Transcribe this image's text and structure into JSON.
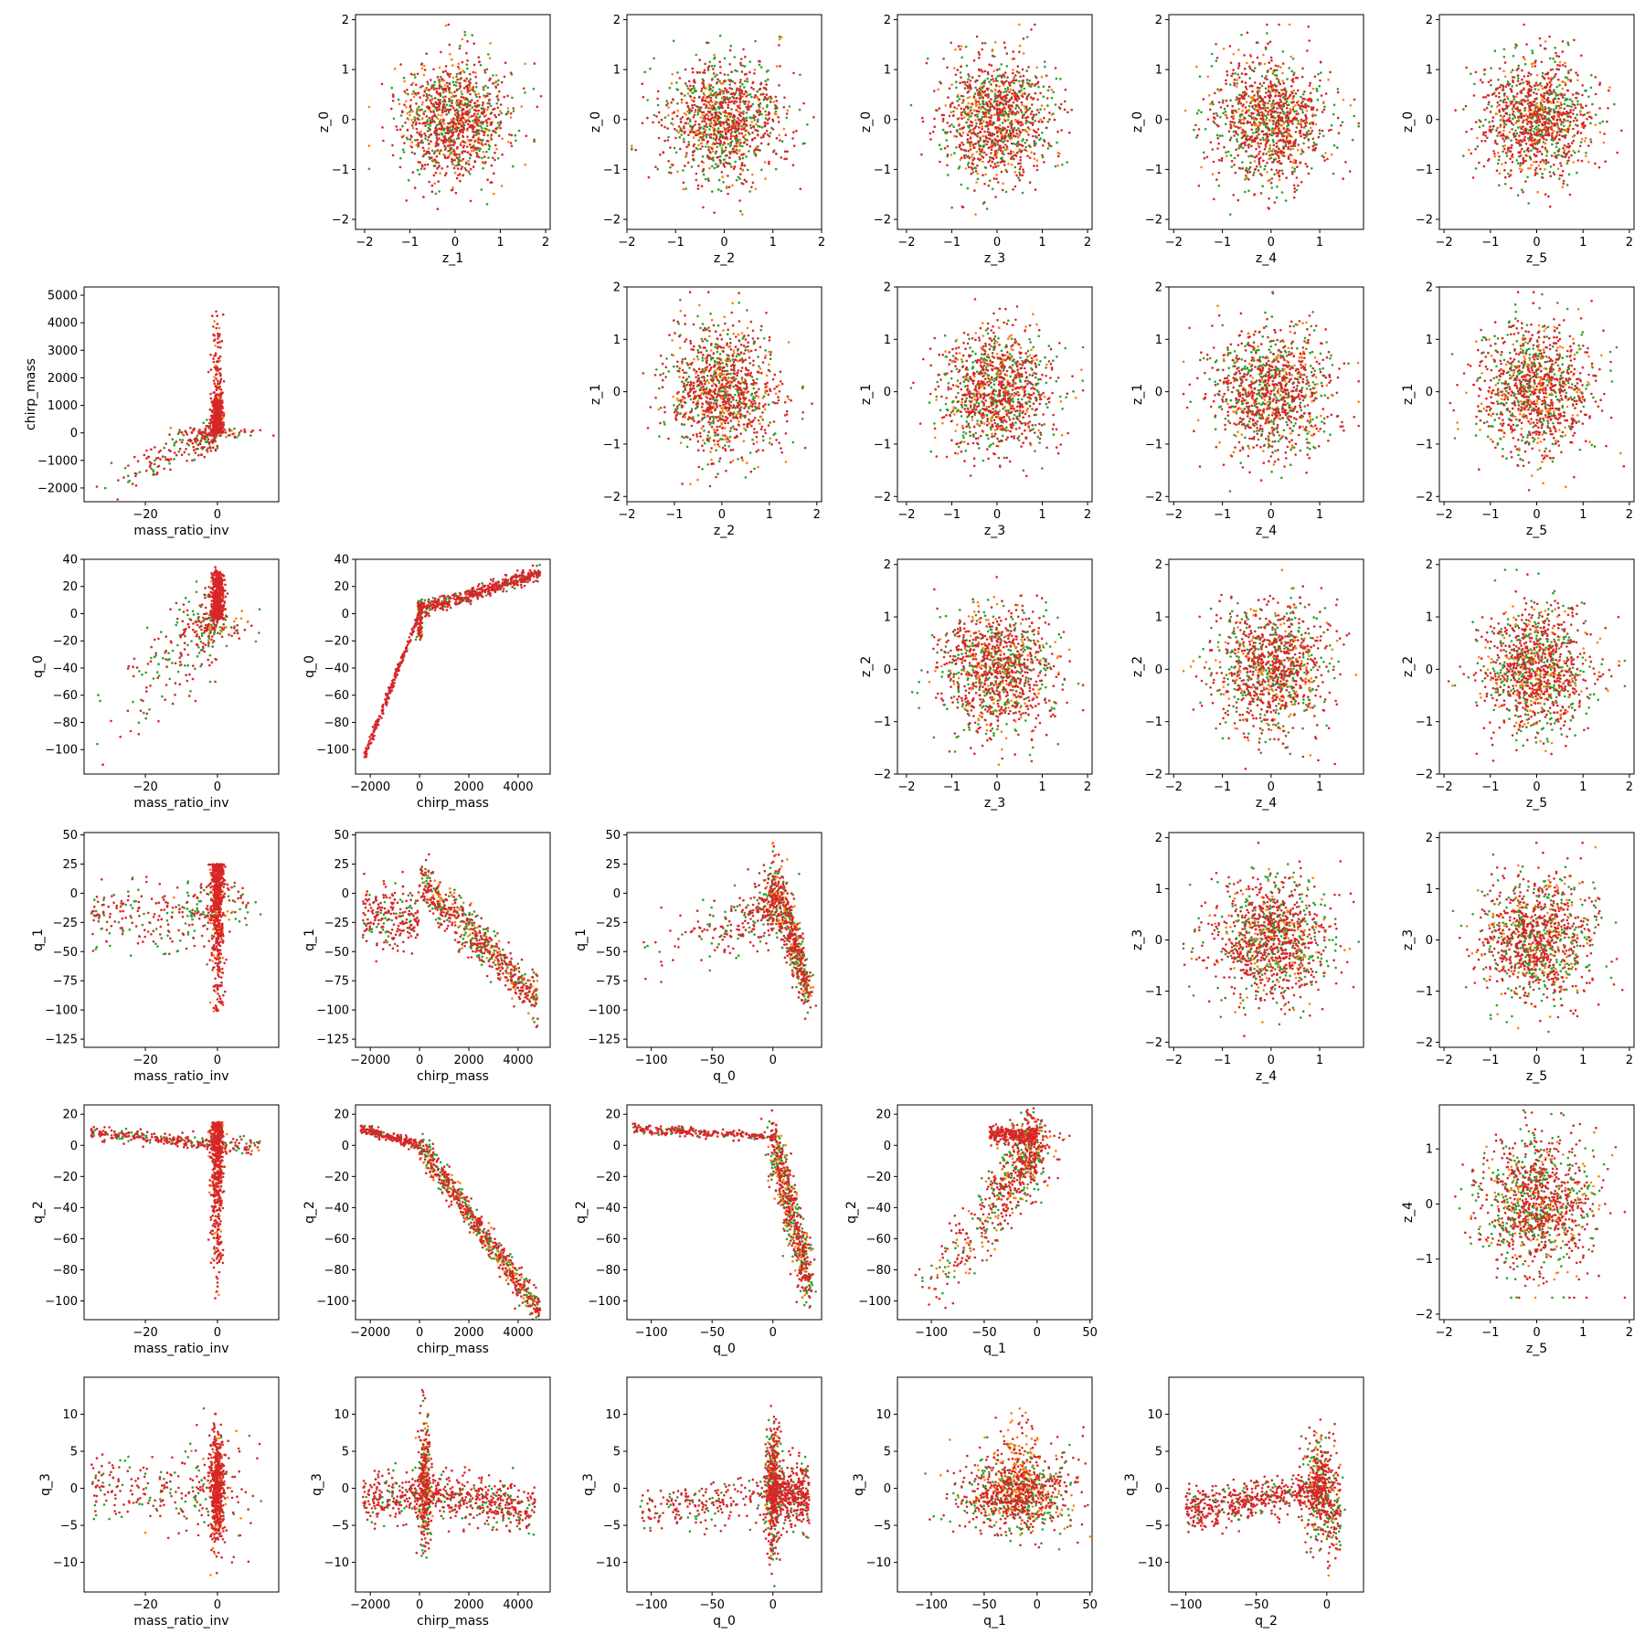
{
  "figure": {
    "description_free": true,
    "colors": {
      "red": "#d62728",
      "green": "#2ca02c",
      "orange": "#ff7f0e"
    }
  },
  "chart_data": [
    {
      "type": "scatter",
      "row": 0,
      "col": 1,
      "xlabel": "z_1",
      "ylabel": "z_0",
      "xlim": [
        -2.2,
        2.1
      ],
      "ylim": [
        -2.2,
        2.1
      ],
      "xticks": [
        -2,
        -1,
        0,
        1,
        2
      ],
      "yticks": [
        -2,
        -1,
        0,
        1,
        2
      ],
      "shape": "blob",
      "sx": 0.6,
      "sy": 0.6,
      "rx": 1.9,
      "ry": 1.9
    },
    {
      "type": "scatter",
      "row": 0,
      "col": 2,
      "xlabel": "z_2",
      "ylabel": "z_0",
      "xlim": [
        -2.0,
        2.0
      ],
      "ylim": [
        -2.2,
        2.1
      ],
      "xticks": [
        -2,
        -1,
        0,
        1,
        2
      ],
      "yticks": [
        -2,
        -1,
        0,
        1,
        2
      ],
      "shape": "blob",
      "sx": 0.6,
      "sy": 0.6,
      "rx": 1.9,
      "ry": 1.9
    },
    {
      "type": "scatter",
      "row": 0,
      "col": 3,
      "xlabel": "z_3",
      "ylabel": "z_0",
      "xlim": [
        -2.2,
        2.1
      ],
      "ylim": [
        -2.2,
        2.1
      ],
      "xticks": [
        -2,
        -1,
        0,
        1,
        2
      ],
      "yticks": [
        -2,
        -1,
        0,
        1,
        2
      ],
      "shape": "blob",
      "sx": 0.6,
      "sy": 0.6,
      "rx": 1.9,
      "ry": 1.9
    },
    {
      "type": "scatter",
      "row": 0,
      "col": 4,
      "xlabel": "z_4",
      "ylabel": "z_0",
      "xlim": [
        -2.1,
        1.9
      ],
      "ylim": [
        -2.2,
        2.1
      ],
      "xticks": [
        -2,
        -1,
        0,
        1
      ],
      "yticks": [
        -2,
        -1,
        0,
        1,
        2
      ],
      "shape": "blob",
      "sx": 0.6,
      "sy": 0.6,
      "rx": 1.8,
      "ry": 1.9
    },
    {
      "type": "scatter",
      "row": 0,
      "col": 5,
      "xlabel": "z_5",
      "ylabel": "z_0",
      "xlim": [
        -2.1,
        2.1
      ],
      "ylim": [
        -2.2,
        2.1
      ],
      "xticks": [
        -2,
        -1,
        0,
        1,
        2
      ],
      "yticks": [
        -2,
        -1,
        0,
        1,
        2
      ],
      "shape": "blob",
      "sx": 0.6,
      "sy": 0.6,
      "rx": 1.9,
      "ry": 1.9
    },
    {
      "type": "scatter",
      "row": 1,
      "col": 0,
      "xlabel": "mass_ratio_inv",
      "ylabel": "chirp_mass",
      "xlim": [
        -37,
        17
      ],
      "ylim": [
        -2500,
        5300
      ],
      "xticks": [
        -20,
        0
      ],
      "yticks": [
        -2000,
        -1000,
        0,
        1000,
        2000,
        3000,
        4000,
        5000
      ],
      "shape": "mass_chirp"
    },
    {
      "type": "scatter",
      "row": 1,
      "col": 2,
      "xlabel": "z_2",
      "ylabel": "z_1",
      "xlim": [
        -2.0,
        2.1
      ],
      "ylim": [
        -2.1,
        2.0
      ],
      "xticks": [
        -2,
        -1,
        0,
        1,
        2
      ],
      "yticks": [
        -2,
        -1,
        0,
        1,
        2
      ],
      "shape": "blob",
      "sx": 0.6,
      "sy": 0.6,
      "rx": 1.9,
      "ry": 1.9
    },
    {
      "type": "scatter",
      "row": 1,
      "col": 3,
      "xlabel": "z_3",
      "ylabel": "z_1",
      "xlim": [
        -2.2,
        2.1
      ],
      "ylim": [
        -2.1,
        2.0
      ],
      "xticks": [
        -2,
        -1,
        0,
        1,
        2
      ],
      "yticks": [
        -2,
        -1,
        0,
        1,
        2
      ],
      "shape": "blob",
      "sx": 0.6,
      "sy": 0.6,
      "rx": 1.9,
      "ry": 1.9
    },
    {
      "type": "scatter",
      "row": 1,
      "col": 4,
      "xlabel": "z_4",
      "ylabel": "z_1",
      "xlim": [
        -2.1,
        1.9
      ],
      "ylim": [
        -2.1,
        2.0
      ],
      "xticks": [
        -2,
        -1,
        0,
        1
      ],
      "yticks": [
        -2,
        -1,
        0,
        1,
        2
      ],
      "shape": "blob",
      "sx": 0.6,
      "sy": 0.6,
      "rx": 1.8,
      "ry": 1.9
    },
    {
      "type": "scatter",
      "row": 1,
      "col": 5,
      "xlabel": "z_5",
      "ylabel": "z_1",
      "xlim": [
        -2.1,
        2.1
      ],
      "ylim": [
        -2.1,
        2.0
      ],
      "xticks": [
        -2,
        -1,
        0,
        1,
        2
      ],
      "yticks": [
        -2,
        -1,
        0,
        1,
        2
      ],
      "shape": "blob",
      "sx": 0.6,
      "sy": 0.6,
      "rx": 1.9,
      "ry": 1.9
    },
    {
      "type": "scatter",
      "row": 2,
      "col": 0,
      "xlabel": "mass_ratio_inv",
      "ylabel": "q_0",
      "xlim": [
        -37,
        17
      ],
      "ylim": [
        -118,
        40
      ],
      "xticks": [
        -20,
        0
      ],
      "yticks": [
        -100,
        -80,
        -60,
        -40,
        -20,
        0,
        20,
        40
      ],
      "shape": "mass_q0"
    },
    {
      "type": "scatter",
      "row": 2,
      "col": 1,
      "xlabel": "chirp_mass",
      "ylabel": "q_0",
      "xlim": [
        -2600,
        5300
      ],
      "ylim": [
        -118,
        40
      ],
      "xticks": [
        -2000,
        0,
        2000,
        4000
      ],
      "yticks": [
        -100,
        -80,
        -60,
        -40,
        -20,
        0,
        20,
        40
      ],
      "shape": "chirp_q0"
    },
    {
      "type": "scatter",
      "row": 2,
      "col": 3,
      "xlabel": "z_3",
      "ylabel": "z_2",
      "xlim": [
        -2.2,
        2.1
      ],
      "ylim": [
        -2.0,
        2.1
      ],
      "xticks": [
        -2,
        -1,
        0,
        1,
        2
      ],
      "yticks": [
        -2,
        -1,
        0,
        1,
        2
      ],
      "shape": "blob",
      "sx": 0.6,
      "sy": 0.6,
      "rx": 1.9,
      "ry": 1.9
    },
    {
      "type": "scatter",
      "row": 2,
      "col": 4,
      "xlabel": "z_4",
      "ylabel": "z_2",
      "xlim": [
        -2.1,
        1.9
      ],
      "ylim": [
        -2.0,
        2.1
      ],
      "xticks": [
        -2,
        -1,
        0,
        1
      ],
      "yticks": [
        -2,
        -1,
        0,
        1,
        2
      ],
      "shape": "blob",
      "sx": 0.6,
      "sy": 0.6,
      "rx": 1.8,
      "ry": 1.9
    },
    {
      "type": "scatter",
      "row": 2,
      "col": 5,
      "xlabel": "z_5",
      "ylabel": "z_2",
      "xlim": [
        -2.1,
        2.1
      ],
      "ylim": [
        -2.0,
        2.1
      ],
      "xticks": [
        -2,
        -1,
        0,
        1,
        2
      ],
      "yticks": [
        -2,
        -1,
        0,
        1,
        2
      ],
      "shape": "blob",
      "sx": 0.6,
      "sy": 0.6,
      "rx": 1.9,
      "ry": 1.9
    },
    {
      "type": "scatter",
      "row": 3,
      "col": 0,
      "xlabel": "mass_ratio_inv",
      "ylabel": "q_1",
      "xlim": [
        -37,
        17
      ],
      "ylim": [
        -132,
        52
      ],
      "xticks": [
        -20,
        0
      ],
      "yticks": [
        -125,
        -100,
        -75,
        -50,
        -25,
        0,
        25,
        50
      ],
      "shape": "mass_q1"
    },
    {
      "type": "scatter",
      "row": 3,
      "col": 1,
      "xlabel": "chirp_mass",
      "ylabel": "q_1",
      "xlim": [
        -2600,
        5300
      ],
      "ylim": [
        -132,
        52
      ],
      "xticks": [
        -2000,
        0,
        2000,
        4000
      ],
      "yticks": [
        -125,
        -100,
        -75,
        -50,
        -25,
        0,
        25,
        50
      ],
      "shape": "chirp_q1"
    },
    {
      "type": "scatter",
      "row": 3,
      "col": 2,
      "xlabel": "q_0",
      "ylabel": "q_1",
      "xlim": [
        -120,
        40
      ],
      "ylim": [
        -132,
        52
      ],
      "xticks": [
        -100,
        -50,
        0
      ],
      "yticks": [
        -125,
        -100,
        -75,
        -50,
        -25,
        0,
        25,
        50
      ],
      "shape": "q0_q1"
    },
    {
      "type": "scatter",
      "row": 3,
      "col": 4,
      "xlabel": "z_4",
      "ylabel": "z_3",
      "xlim": [
        -2.1,
        1.9
      ],
      "ylim": [
        -2.1,
        2.1
      ],
      "xticks": [
        -2,
        -1,
        0,
        1
      ],
      "yticks": [
        -2,
        -1,
        0,
        1,
        2
      ],
      "shape": "blob",
      "sx": 0.6,
      "sy": 0.6,
      "rx": 1.8,
      "ry": 1.9
    },
    {
      "type": "scatter",
      "row": 3,
      "col": 5,
      "xlabel": "z_5",
      "ylabel": "z_3",
      "xlim": [
        -2.1,
        2.1
      ],
      "ylim": [
        -2.1,
        2.1
      ],
      "xticks": [
        -2,
        -1,
        0,
        1,
        2
      ],
      "yticks": [
        -2,
        -1,
        0,
        1,
        2
      ],
      "shape": "blob",
      "sx": 0.6,
      "sy": 0.6,
      "rx": 1.9,
      "ry": 1.9
    },
    {
      "type": "scatter",
      "row": 4,
      "col": 0,
      "xlabel": "mass_ratio_inv",
      "ylabel": "q_2",
      "xlim": [
        -37,
        17
      ],
      "ylim": [
        -112,
        26
      ],
      "xticks": [
        -20,
        0
      ],
      "yticks": [
        -100,
        -80,
        -60,
        -40,
        -20,
        0,
        20
      ],
      "shape": "mass_q2"
    },
    {
      "type": "scatter",
      "row": 4,
      "col": 1,
      "xlabel": "chirp_mass",
      "ylabel": "q_2",
      "xlim": [
        -2600,
        5300
      ],
      "ylim": [
        -112,
        26
      ],
      "xticks": [
        -2000,
        0,
        2000,
        4000
      ],
      "yticks": [
        -100,
        -80,
        -60,
        -40,
        -20,
        0,
        20
      ],
      "shape": "chirp_q2"
    },
    {
      "type": "scatter",
      "row": 4,
      "col": 2,
      "xlabel": "q_0",
      "ylabel": "q_2",
      "xlim": [
        -120,
        40
      ],
      "ylim": [
        -112,
        26
      ],
      "xticks": [
        -100,
        -50,
        0
      ],
      "yticks": [
        -100,
        -80,
        -60,
        -40,
        -20,
        0,
        20
      ],
      "shape": "q0_q2"
    },
    {
      "type": "scatter",
      "row": 4,
      "col": 3,
      "xlabel": "q_1",
      "ylabel": "q_2",
      "xlim": [
        -132,
        52
      ],
      "ylim": [
        -112,
        26
      ],
      "xticks": [
        -100,
        -50,
        0,
        50
      ],
      "yticks": [
        -100,
        -80,
        -60,
        -40,
        -20,
        0,
        20
      ],
      "shape": "q1_q2"
    },
    {
      "type": "scatter",
      "row": 4,
      "col": 5,
      "xlabel": "z_5",
      "ylabel": "z_4",
      "xlim": [
        -2.1,
        2.1
      ],
      "ylim": [
        -2.1,
        1.8
      ],
      "xticks": [
        -2,
        -1,
        0,
        1,
        2
      ],
      "yticks": [
        -2,
        -1,
        0,
        1
      ],
      "shape": "blob",
      "sx": 0.6,
      "sy": 0.6,
      "rx": 1.9,
      "ry": 1.7
    },
    {
      "type": "scatter",
      "row": 5,
      "col": 0,
      "xlabel": "mass_ratio_inv",
      "ylabel": "q_3",
      "xlim": [
        -37,
        17
      ],
      "ylim": [
        -14,
        15
      ],
      "xticks": [
        -20,
        0
      ],
      "yticks": [
        -10,
        -5,
        0,
        5,
        10
      ],
      "shape": "mass_q3"
    },
    {
      "type": "scatter",
      "row": 5,
      "col": 1,
      "xlabel": "chirp_mass",
      "ylabel": "q_3",
      "xlim": [
        -2600,
        5300
      ],
      "ylim": [
        -14,
        15
      ],
      "xticks": [
        -2000,
        0,
        2000,
        4000
      ],
      "yticks": [
        -10,
        -5,
        0,
        5,
        10
      ],
      "shape": "chirp_q3"
    },
    {
      "type": "scatter",
      "row": 5,
      "col": 2,
      "xlabel": "q_0",
      "ylabel": "q_3",
      "xlim": [
        -120,
        40
      ],
      "ylim": [
        -14,
        15
      ],
      "xticks": [
        -100,
        -50,
        0
      ],
      "yticks": [
        -10,
        -5,
        0,
        5,
        10
      ],
      "shape": "q0_q3"
    },
    {
      "type": "scatter",
      "row": 5,
      "col": 3,
      "xlabel": "q_1",
      "ylabel": "q_3",
      "xlim": [
        -132,
        52
      ],
      "ylim": [
        -14,
        15
      ],
      "xticks": [
        -100,
        -50,
        0,
        50
      ],
      "yticks": [
        -10,
        -5,
        0,
        5,
        10
      ],
      "shape": "q1_q3"
    },
    {
      "type": "scatter",
      "row": 5,
      "col": 4,
      "xlabel": "q_2",
      "ylabel": "q_3",
      "xlim": [
        -112,
        26
      ],
      "ylim": [
        -14,
        15
      ],
      "xticks": [
        -100,
        -50,
        0
      ],
      "yticks": [
        -10,
        -5,
        0,
        5,
        10
      ],
      "shape": "q2_q3"
    }
  ]
}
